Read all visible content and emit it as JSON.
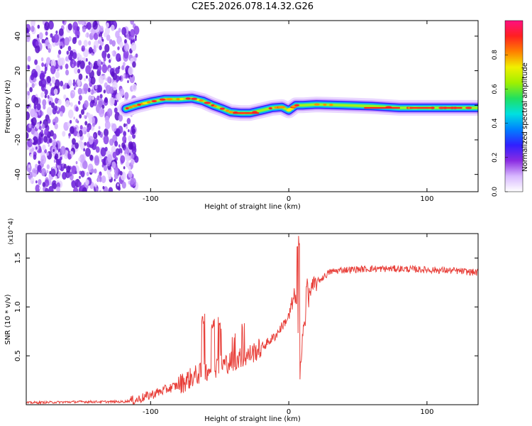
{
  "title": "C2E5.2026.078.14.32.G26",
  "colorbar": {
    "label": "Normalized spectral amplitude",
    "ticks": [
      "0.0",
      "0.2",
      "0.4",
      "0.6",
      "0.8"
    ],
    "tick_values": [
      0.0,
      0.2,
      0.4,
      0.6,
      0.8
    ],
    "range": [
      0,
      1
    ],
    "stops": [
      "#ffffff",
      "#d8b8ff",
      "#8a2be2",
      "#3020ff",
      "#0080ff",
      "#00e0e0",
      "#20e060",
      "#a0f000",
      "#f0f000",
      "#ff8000",
      "#ff2020",
      "#ff1080"
    ]
  },
  "chart_data": [
    {
      "type": "heatmap",
      "name": "spectrogram",
      "xlabel": "Height of straight line (km)",
      "ylabel": "Frequency (Hz)",
      "xlim": [
        -190,
        137
      ],
      "ylim": [
        -50,
        49
      ],
      "x_ticks": [
        -100,
        0,
        100
      ],
      "x_tick_labels": [
        "-100",
        "0",
        "100"
      ],
      "y_ticks": [
        -40,
        -20,
        0,
        20,
        40
      ],
      "y_tick_labels": [
        "-40",
        "-20",
        "0",
        "20",
        "40"
      ],
      "noise_region_x": [
        -190,
        -115
      ],
      "ridge": {
        "x": [
          -118,
          -110,
          -100,
          -90,
          -80,
          -70,
          -62,
          -55,
          -48,
          -42,
          -35,
          -28,
          -20,
          -12,
          -5,
          0,
          5,
          10,
          20,
          40,
          60,
          80,
          90,
          100,
          110,
          120,
          137
        ],
        "y": [
          -2,
          0,
          2,
          3.5,
          3.5,
          4,
          2.5,
          0,
          -2,
          -4,
          -4.5,
          -4.5,
          -3,
          -1.5,
          -1,
          -3,
          0,
          0,
          0.5,
          0,
          -0.5,
          -1.5,
          -1.5,
          -1.5,
          -1.5,
          -1.5,
          -1.5
        ]
      }
    },
    {
      "type": "line",
      "name": "snr",
      "xlabel": "Height of straight line (km)",
      "ylabel": "SNR (10 * v/v)",
      "y_scale_label": "(x10^4)",
      "xlim": [
        -190,
        137
      ],
      "ylim": [
        0,
        1.75
      ],
      "x_ticks": [
        -100,
        0,
        100
      ],
      "x_tick_labels": [
        "-100",
        "0",
        "100"
      ],
      "y_ticks": [
        0.5,
        1.0,
        1.5
      ],
      "y_tick_labels": [
        "0.5",
        "1.0",
        "1.5"
      ],
      "color": "#e8403a",
      "series": {
        "x": [
          -190,
          -150,
          -120,
          -110,
          -100,
          -90,
          -80,
          -70,
          -60,
          -50,
          -40,
          -30,
          -20,
          -10,
          0,
          5,
          8,
          10,
          15,
          20,
          30,
          40,
          60,
          80,
          100,
          120,
          137
        ],
        "y": [
          0.02,
          0.03,
          0.03,
          0.05,
          0.1,
          0.15,
          0.2,
          0.28,
          0.35,
          0.4,
          0.45,
          0.5,
          0.58,
          0.7,
          0.9,
          1.15,
          0.25,
          0.7,
          1.15,
          1.25,
          1.36,
          1.38,
          1.39,
          1.39,
          1.38,
          1.37,
          1.35
        ]
      },
      "spikes": [
        {
          "x": -62,
          "y": 0.96
        },
        {
          "x": -55,
          "y": 0.88
        },
        {
          "x": -50,
          "y": 0.9
        },
        {
          "x": -40,
          "y": 0.82
        },
        {
          "x": -33,
          "y": 0.86
        },
        {
          "x": 7,
          "y": 1.73
        },
        {
          "x": 13,
          "y": 1.3
        }
      ]
    }
  ]
}
